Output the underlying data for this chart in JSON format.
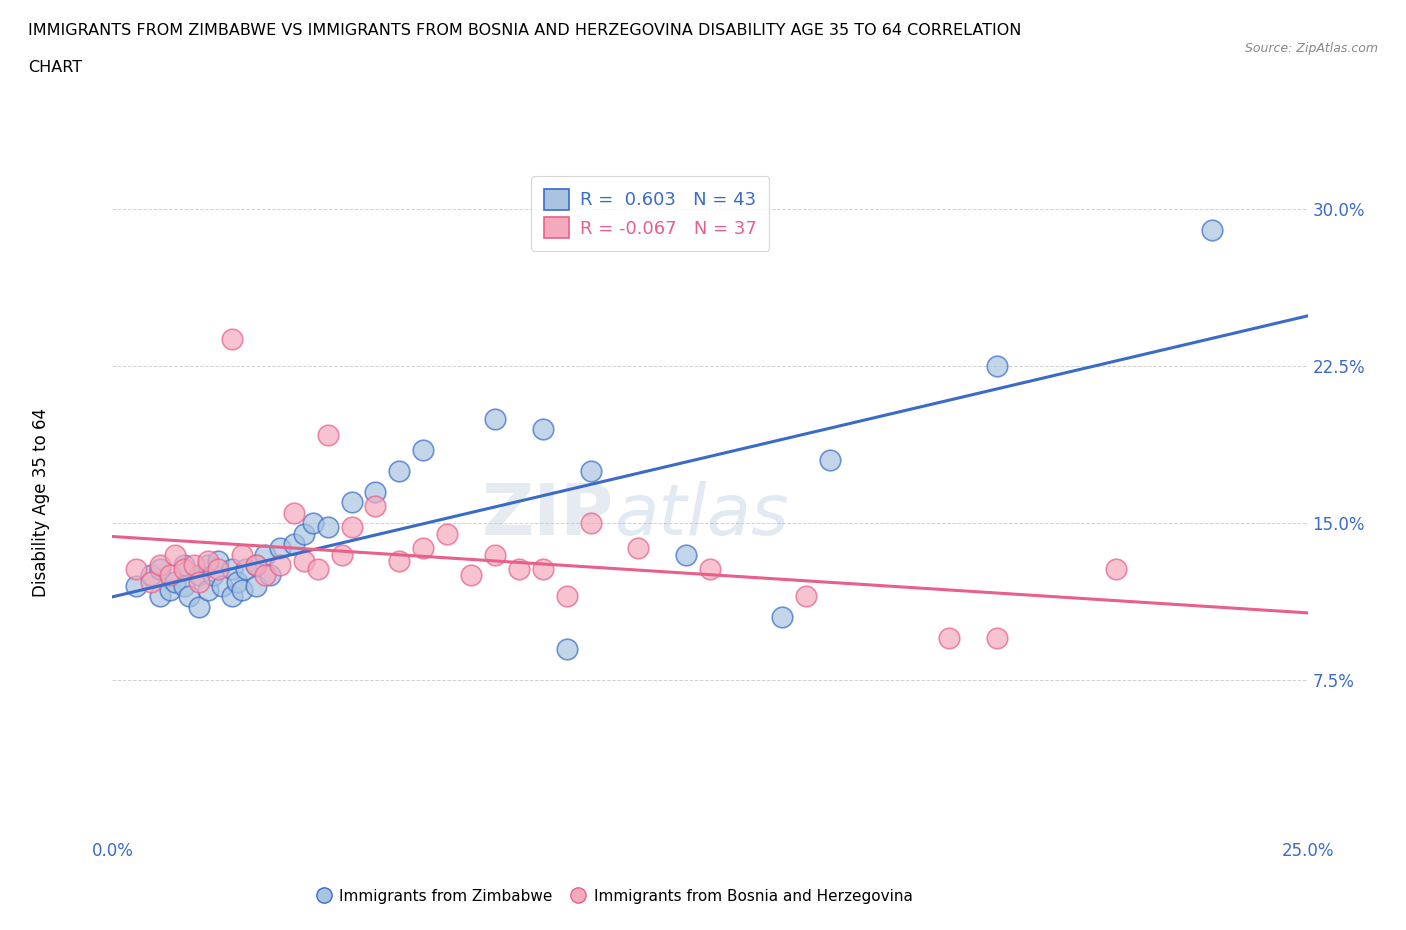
{
  "title_line1": "IMMIGRANTS FROM ZIMBABWE VS IMMIGRANTS FROM BOSNIA AND HERZEGOVINA DISABILITY AGE 35 TO 64 CORRELATION",
  "title_line2": "CHART",
  "source": "Source: ZipAtlas.com",
  "ylabel": "Disability Age 35 to 64",
  "xlim": [
    0.0,
    0.25
  ],
  "ylim": [
    0.0,
    0.32
  ],
  "xticks": [
    0.0,
    0.05,
    0.1,
    0.15,
    0.2,
    0.25
  ],
  "xticklabels": [
    "0.0%",
    "",
    "",
    "",
    "",
    "25.0%"
  ],
  "yticks": [
    0.0,
    0.075,
    0.15,
    0.225,
    0.3
  ],
  "yticklabels": [
    "",
    "7.5%",
    "15.0%",
    "22.5%",
    "30.0%"
  ],
  "r_blue": 0.603,
  "n_blue": 43,
  "r_pink": -0.067,
  "n_pink": 37,
  "blue_color": "#A8C4E0",
  "pink_color": "#F4AABC",
  "line_blue": "#3A6BC8",
  "line_pink": "#E8608A",
  "tick_color": "#3A6BC8",
  "watermark_color": "#C8DCF0",
  "legend_labels": [
    "Immigrants from Zimbabwe",
    "Immigrants from Bosnia and Herzegovina"
  ],
  "blue_scatter_x": [
    0.005,
    0.008,
    0.01,
    0.01,
    0.012,
    0.013,
    0.015,
    0.015,
    0.016,
    0.018,
    0.018,
    0.02,
    0.02,
    0.021,
    0.022,
    0.023,
    0.025,
    0.025,
    0.026,
    0.027,
    0.028,
    0.03,
    0.03,
    0.032,
    0.033,
    0.035,
    0.038,
    0.04,
    0.042,
    0.045,
    0.05,
    0.055,
    0.06,
    0.065,
    0.08,
    0.09,
    0.095,
    0.1,
    0.12,
    0.14,
    0.15,
    0.185,
    0.23
  ],
  "blue_scatter_y": [
    0.12,
    0.125,
    0.128,
    0.115,
    0.118,
    0.122,
    0.12,
    0.13,
    0.115,
    0.125,
    0.11,
    0.13,
    0.118,
    0.125,
    0.132,
    0.12,
    0.128,
    0.115,
    0.122,
    0.118,
    0.128,
    0.13,
    0.12,
    0.135,
    0.125,
    0.138,
    0.14,
    0.145,
    0.15,
    0.148,
    0.16,
    0.165,
    0.175,
    0.185,
    0.2,
    0.195,
    0.09,
    0.175,
    0.135,
    0.105,
    0.18,
    0.225,
    0.29
  ],
  "pink_scatter_x": [
    0.005,
    0.008,
    0.01,
    0.012,
    0.013,
    0.015,
    0.017,
    0.018,
    0.02,
    0.022,
    0.025,
    0.027,
    0.03,
    0.032,
    0.035,
    0.038,
    0.04,
    0.043,
    0.045,
    0.048,
    0.05,
    0.055,
    0.06,
    0.065,
    0.07,
    0.075,
    0.08,
    0.085,
    0.09,
    0.095,
    0.1,
    0.11,
    0.125,
    0.145,
    0.175,
    0.185,
    0.21
  ],
  "pink_scatter_y": [
    0.128,
    0.122,
    0.13,
    0.125,
    0.135,
    0.128,
    0.13,
    0.122,
    0.132,
    0.128,
    0.238,
    0.135,
    0.13,
    0.125,
    0.13,
    0.155,
    0.132,
    0.128,
    0.192,
    0.135,
    0.148,
    0.158,
    0.132,
    0.138,
    0.145,
    0.125,
    0.135,
    0.128,
    0.128,
    0.115,
    0.15,
    0.138,
    0.128,
    0.115,
    0.095,
    0.095,
    0.128
  ]
}
